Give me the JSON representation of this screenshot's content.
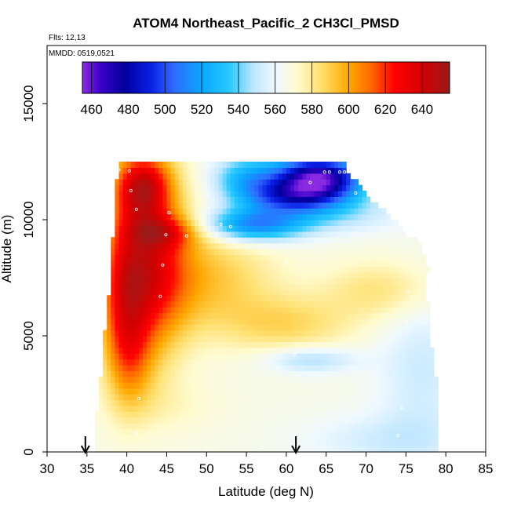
{
  "chart_data": {
    "type": "heatmap",
    "title": "ATOM4 Northeast_Pacific_2 CH3Cl_PMSD",
    "subtitle_lines": [
      "Flts: 12,13",
      "MMDD: 0519,0521"
    ],
    "xlabel": "Latitude (deg N)",
    "ylabel": "Altitude (m)",
    "xlim": [
      30,
      85
    ],
    "ylim": [
      0,
      17500
    ],
    "x_ticks": [
      30,
      35,
      40,
      45,
      50,
      55,
      60,
      65,
      70,
      75,
      80,
      85
    ],
    "y_ticks": [
      0,
      5000,
      10000,
      15000
    ],
    "colorbar": {
      "range": [
        455,
        655
      ],
      "tick_values": [
        460,
        480,
        500,
        520,
        540,
        560,
        580,
        600,
        620,
        640
      ],
      "separators": [
        460,
        500,
        540,
        580,
        620
      ],
      "stops": [
        {
          "v": 455,
          "c": "#8a2be2"
        },
        {
          "v": 465,
          "c": "#3a00c8"
        },
        {
          "v": 478,
          "c": "#00009c"
        },
        {
          "v": 492,
          "c": "#0a1ee6"
        },
        {
          "v": 505,
          "c": "#2f6cff"
        },
        {
          "v": 520,
          "c": "#0aa6ff"
        },
        {
          "v": 535,
          "c": "#28c8ff"
        },
        {
          "v": 548,
          "c": "#bde6ff"
        },
        {
          "v": 560,
          "c": "#eef8ff"
        },
        {
          "v": 572,
          "c": "#fffbd0"
        },
        {
          "v": 585,
          "c": "#ffe070"
        },
        {
          "v": 600,
          "c": "#ffa800"
        },
        {
          "v": 612,
          "c": "#ff6a00"
        },
        {
          "v": 625,
          "c": "#ff0000"
        },
        {
          "v": 640,
          "c": "#d40000"
        },
        {
          "v": 655,
          "c": "#9a1a1a"
        }
      ]
    },
    "flight_arrows_lat": [
      34.8,
      61.2
    ],
    "field": {
      "alt_step": 250,
      "lat_step": 0.5,
      "background": 566,
      "envelope": [
        {
          "alt": 0,
          "lat_min": 36.0,
          "lat_max": 79.0
        },
        {
          "alt": 1500,
          "lat_min": 36.2,
          "lat_max": 79.2
        },
        {
          "alt": 2500,
          "lat_min": 36.5,
          "lat_max": 79.0
        },
        {
          "alt": 4000,
          "lat_min": 37.0,
          "lat_max": 78.5
        },
        {
          "alt": 5000,
          "lat_min": 37.2,
          "lat_max": 78.0
        },
        {
          "alt": 6000,
          "lat_min": 37.6,
          "lat_max": 78.0
        },
        {
          "alt": 7000,
          "lat_min": 37.8,
          "lat_max": 77.5
        },
        {
          "alt": 8000,
          "lat_min": 38.0,
          "lat_max": 77.8
        },
        {
          "alt": 8500,
          "lat_min": 38.0,
          "lat_max": 77.3
        },
        {
          "alt": 9000,
          "lat_min": 38.2,
          "lat_max": 77.0
        },
        {
          "alt": 9500,
          "lat_min": 38.3,
          "lat_max": 74.5
        },
        {
          "alt": 10000,
          "lat_min": 38.4,
          "lat_max": 73.5
        },
        {
          "alt": 10500,
          "lat_min": 38.6,
          "lat_max": 72.0
        },
        {
          "alt": 11000,
          "lat_min": 38.6,
          "lat_max": 70.0
        },
        {
          "alt": 11500,
          "lat_min": 38.7,
          "lat_max": 69.5
        },
        {
          "alt": 12000,
          "lat_min": 38.8,
          "lat_max": 67.5
        },
        {
          "alt": 12500,
          "lat_min": 38.8,
          "lat_max": 67.5
        }
      ],
      "features": [
        {
          "lat": 42.5,
          "alt": 8000,
          "slat": 3.5,
          "salt": 2800,
          "amp": 60
        },
        {
          "lat": 42.0,
          "alt": 11500,
          "slat": 2.5,
          "salt": 1000,
          "amp": 55
        },
        {
          "lat": 45.0,
          "alt": 9500,
          "slat": 3.0,
          "salt": 500,
          "amp": 30
        },
        {
          "lat": 39.5,
          "alt": 6500,
          "slat": 2.0,
          "salt": 2500,
          "amp": 30
        },
        {
          "lat": 40.5,
          "alt": 4000,
          "slat": 2.0,
          "salt": 1500,
          "amp": 22
        },
        {
          "lat": 50.0,
          "alt": 7500,
          "slat": 6.0,
          "salt": 1500,
          "amp": 25
        },
        {
          "lat": 60.0,
          "alt": 5500,
          "slat": 6.0,
          "salt": 900,
          "amp": 20
        },
        {
          "lat": 72.0,
          "alt": 7000,
          "slat": 5.0,
          "salt": 900,
          "amp": 18
        },
        {
          "lat": 64.0,
          "alt": 11800,
          "slat": 4.0,
          "salt": 700,
          "amp": -105
        },
        {
          "lat": 60.0,
          "alt": 11000,
          "slat": 4.0,
          "salt": 500,
          "amp": -45
        },
        {
          "lat": 56.0,
          "alt": 9800,
          "slat": 4.5,
          "salt": 500,
          "amp": -55
        },
        {
          "lat": 55.0,
          "alt": 11800,
          "slat": 3.0,
          "salt": 700,
          "amp": -35
        },
        {
          "lat": 66.0,
          "alt": 10300,
          "slat": 6.0,
          "salt": 600,
          "amp": -18
        },
        {
          "lat": 63.0,
          "alt": 4000,
          "slat": 4.0,
          "salt": 400,
          "amp": -22
        },
        {
          "lat": 77.0,
          "alt": 3500,
          "slat": 4.0,
          "salt": 2500,
          "amp": -14
        },
        {
          "lat": 72.0,
          "alt": 500,
          "slat": 7.0,
          "salt": 800,
          "amp": -12
        },
        {
          "lat": 45.0,
          "alt": 2000,
          "slat": 5.0,
          "salt": 800,
          "amp": 6
        }
      ]
    },
    "sample_points": [
      {
        "lat": 39.0,
        "alt": 12150
      },
      {
        "lat": 40.3,
        "alt": 12100
      },
      {
        "lat": 40.5,
        "alt": 11250
      },
      {
        "lat": 41.2,
        "alt": 10450
      },
      {
        "lat": 45.3,
        "alt": 10300
      },
      {
        "lat": 44.9,
        "alt": 9350
      },
      {
        "lat": 47.5,
        "alt": 9300
      },
      {
        "lat": 51.8,
        "alt": 9800
      },
      {
        "lat": 53.0,
        "alt": 9700
      },
      {
        "lat": 44.5,
        "alt": 8050
      },
      {
        "lat": 44.2,
        "alt": 6700
      },
      {
        "lat": 60.0,
        "alt": 8200
      },
      {
        "lat": 63.0,
        "alt": 11600
      },
      {
        "lat": 64.8,
        "alt": 12050
      },
      {
        "lat": 65.4,
        "alt": 12050
      },
      {
        "lat": 66.7,
        "alt": 12050
      },
      {
        "lat": 67.3,
        "alt": 12050
      },
      {
        "lat": 68.7,
        "alt": 11150
      },
      {
        "lat": 75.3,
        "alt": 6900
      },
      {
        "lat": 61.0,
        "alt": 4200
      },
      {
        "lat": 75.0,
        "alt": 5600
      },
      {
        "lat": 74.5,
        "alt": 1900
      },
      {
        "lat": 74.0,
        "alt": 700
      },
      {
        "lat": 41.2,
        "alt": 800
      },
      {
        "lat": 41.5,
        "alt": 2300
      },
      {
        "lat": 50.0,
        "alt": 100
      },
      {
        "lat": 57.0,
        "alt": 200
      }
    ]
  }
}
